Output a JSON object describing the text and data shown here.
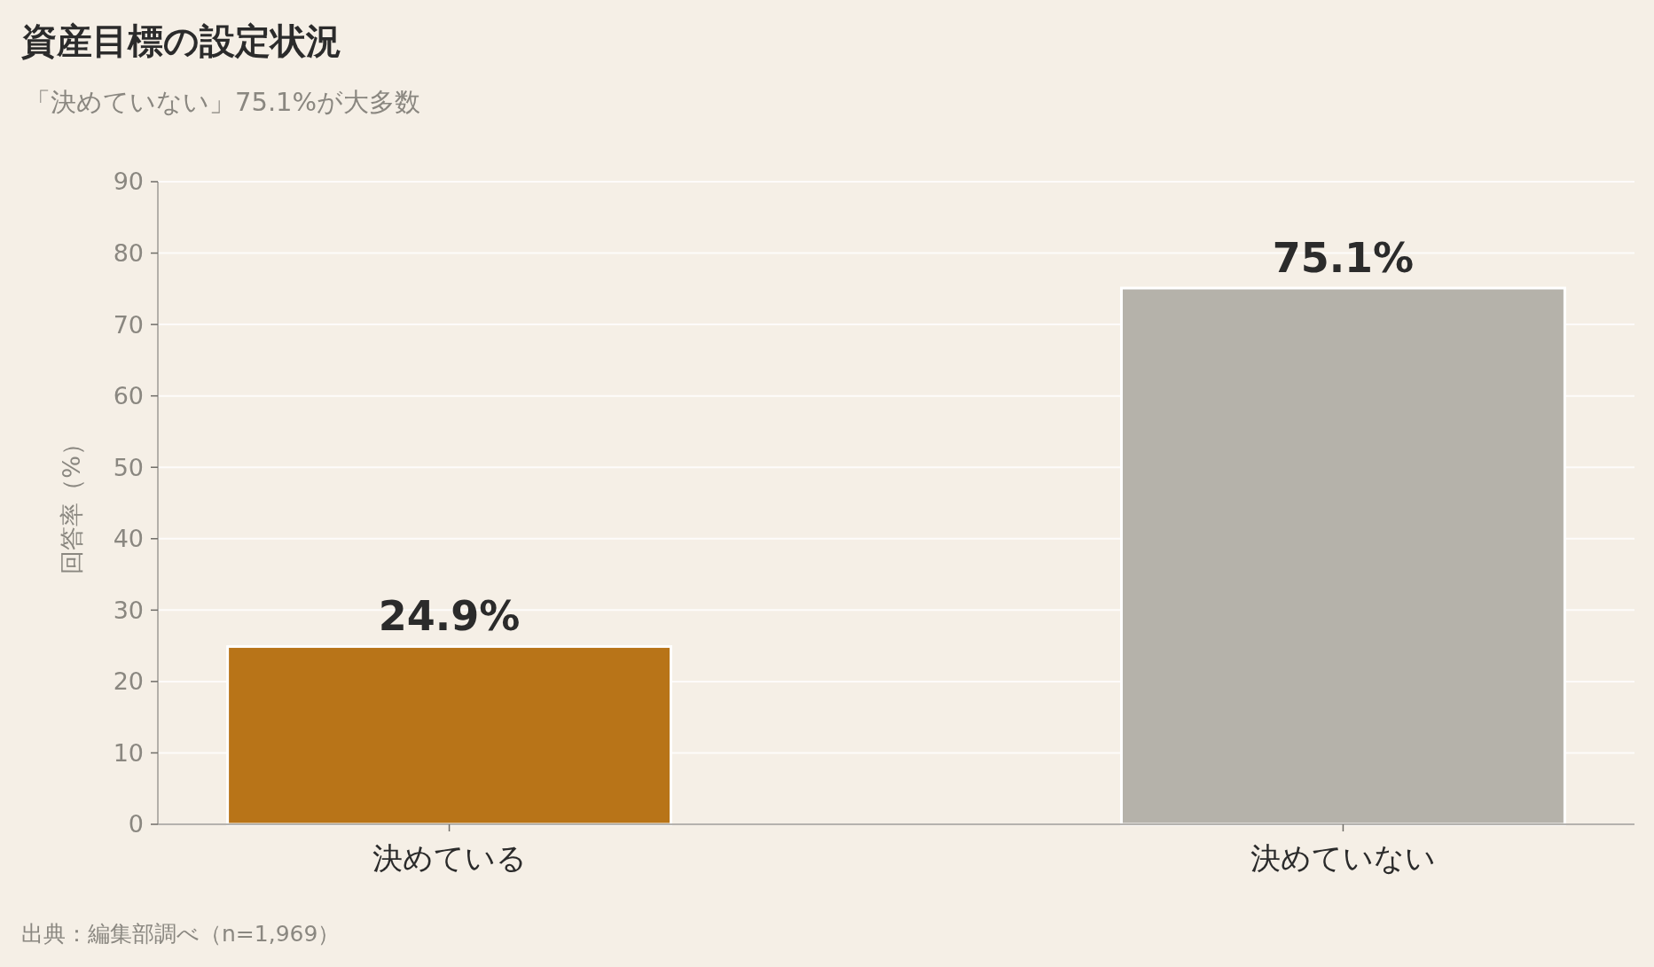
{
  "chart_data": {
    "type": "bar",
    "title": "資産目標の設定状況",
    "subtitle": "「決めていない」75.1%が大多数",
    "ylabel": "回答率（%）",
    "categories": [
      "決めている",
      "決めていない"
    ],
    "values": [
      24.9,
      75.1
    ],
    "colors": [
      "#b87418",
      "#b5b2aa"
    ],
    "value_labels": [
      "24.9%",
      "75.1%"
    ],
    "ylim": [
      0,
      90
    ],
    "yticks": [
      0,
      10,
      20,
      30,
      40,
      50,
      60,
      70,
      80,
      90
    ],
    "grid": "y",
    "annotations": [
      "出典：編集部調べ（n=1,969）"
    ]
  }
}
